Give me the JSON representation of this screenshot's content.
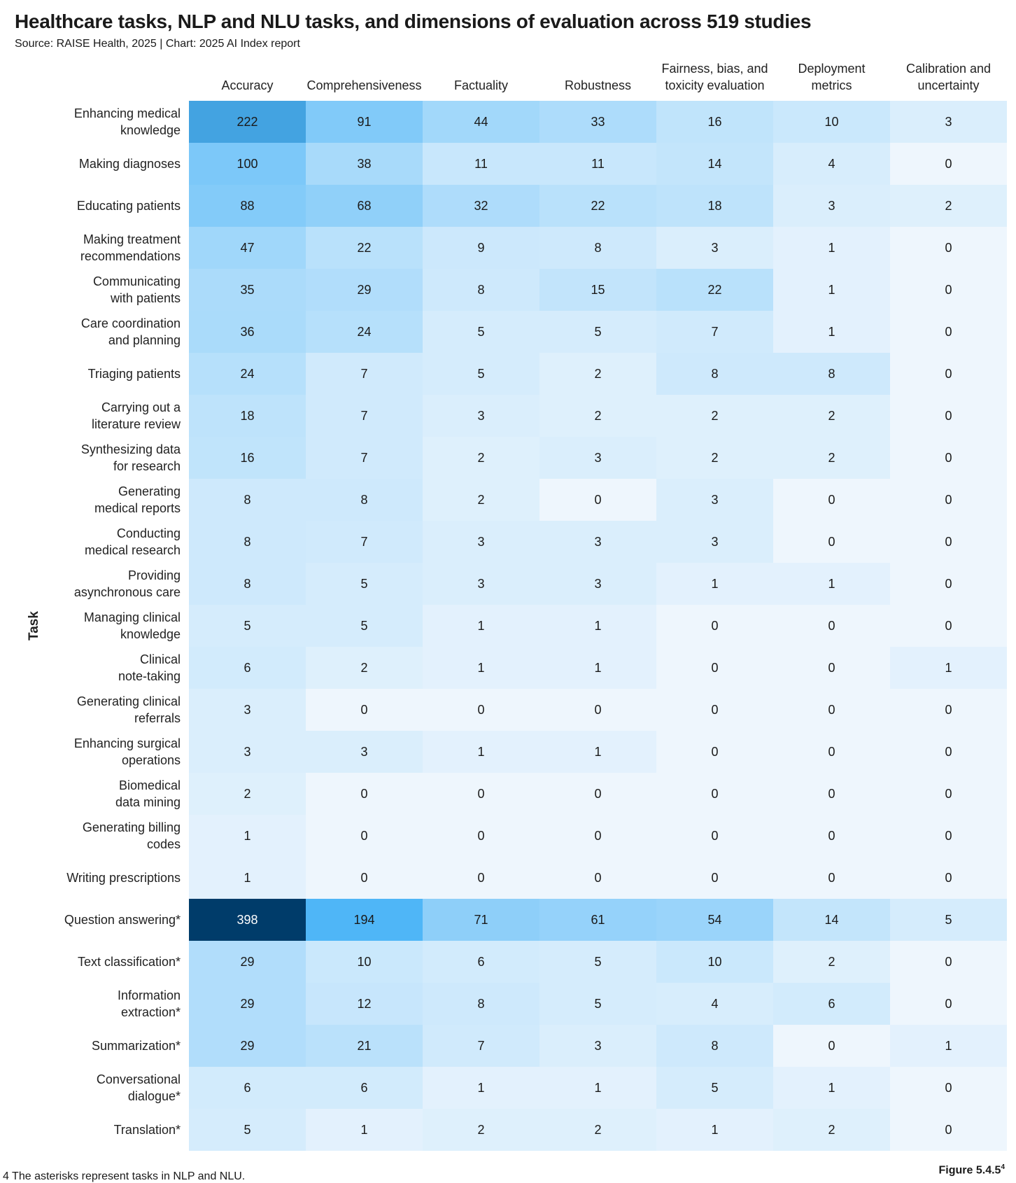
{
  "chart_data": {
    "type": "heatmap",
    "title": "Healthcare tasks, NLP and NLU tasks, and dimensions of evaluation across 519 studies",
    "subtitle": "Source: RAISE Health, 2025 | Chart: 2025 AI Index report",
    "ylabel": "Task",
    "columns": [
      [
        "Accuracy"
      ],
      [
        "Comprehensiveness"
      ],
      [
        "Factuality"
      ],
      [
        "Robustness"
      ],
      [
        "Fairness, bias, and",
        "toxicity evaluation"
      ],
      [
        "Deployment",
        "metrics"
      ],
      [
        "Calibration and",
        "uncertainty"
      ]
    ],
    "rows": [
      [
        "Enhancing medical",
        "knowledge"
      ],
      [
        "Making diagnoses"
      ],
      [
        "Educating patients"
      ],
      [
        "Making treatment",
        "recommendations"
      ],
      [
        "Communicating",
        "with patients"
      ],
      [
        "Care coordination",
        "and planning"
      ],
      [
        "Triaging patients"
      ],
      [
        "Carrying out a",
        "literature review"
      ],
      [
        "Synthesizing data",
        "for research"
      ],
      [
        "Generating",
        "medical reports"
      ],
      [
        "Conducting",
        "medical research"
      ],
      [
        "Providing",
        "asynchronous care"
      ],
      [
        "Managing clinical",
        "knowledge"
      ],
      [
        "Clinical",
        "note-taking"
      ],
      [
        "Generating clinical",
        "referrals"
      ],
      [
        "Enhancing surgical",
        "operations"
      ],
      [
        "Biomedical",
        "data mining"
      ],
      [
        "Generating billing",
        "codes"
      ],
      [
        "Writing prescriptions"
      ],
      [
        "Question answering*"
      ],
      [
        "Text classification*"
      ],
      [
        "Information",
        "extraction*"
      ],
      [
        "Summarization*"
      ],
      [
        "Conversational",
        "dialogue*"
      ],
      [
        "Translation*"
      ]
    ],
    "values": [
      [
        222,
        91,
        44,
        33,
        16,
        10,
        3
      ],
      [
        100,
        38,
        11,
        11,
        14,
        4,
        0
      ],
      [
        88,
        68,
        32,
        22,
        18,
        3,
        2
      ],
      [
        47,
        22,
        9,
        8,
        3,
        1,
        0
      ],
      [
        35,
        29,
        8,
        15,
        22,
        1,
        0
      ],
      [
        36,
        24,
        5,
        5,
        7,
        1,
        0
      ],
      [
        24,
        7,
        5,
        2,
        8,
        8,
        0
      ],
      [
        18,
        7,
        3,
        2,
        2,
        2,
        0
      ],
      [
        16,
        7,
        2,
        3,
        2,
        2,
        0
      ],
      [
        8,
        8,
        2,
        0,
        3,
        0,
        0
      ],
      [
        8,
        7,
        3,
        3,
        3,
        0,
        0
      ],
      [
        8,
        5,
        3,
        3,
        1,
        1,
        0
      ],
      [
        5,
        5,
        1,
        1,
        0,
        0,
        0
      ],
      [
        6,
        2,
        1,
        1,
        0,
        0,
        1
      ],
      [
        3,
        0,
        0,
        0,
        0,
        0,
        0
      ],
      [
        3,
        3,
        1,
        1,
        0,
        0,
        0
      ],
      [
        2,
        0,
        0,
        0,
        0,
        0,
        0
      ],
      [
        1,
        0,
        0,
        0,
        0,
        0,
        0
      ],
      [
        1,
        0,
        0,
        0,
        0,
        0,
        0
      ],
      [
        398,
        194,
        71,
        61,
        54,
        14,
        5
      ],
      [
        29,
        10,
        6,
        5,
        10,
        2,
        0
      ],
      [
        29,
        12,
        8,
        5,
        4,
        6,
        0
      ],
      [
        29,
        21,
        7,
        3,
        8,
        0,
        1
      ],
      [
        6,
        6,
        1,
        1,
        5,
        1,
        0
      ],
      [
        5,
        1,
        2,
        2,
        1,
        2,
        0
      ]
    ],
    "vmin": 0,
    "vmax": 398,
    "colors": {
      "low": "#eef6fd",
      "mid": "#4fb6f7",
      "high": "#003c6a",
      "text_dark": "#1a1a1a",
      "text_light": "#ffffff"
    }
  },
  "footnote": "4 The asterisks represent tasks in NLP and NLU.",
  "figure": "Figure 5.4.5",
  "figure_sup": "4"
}
